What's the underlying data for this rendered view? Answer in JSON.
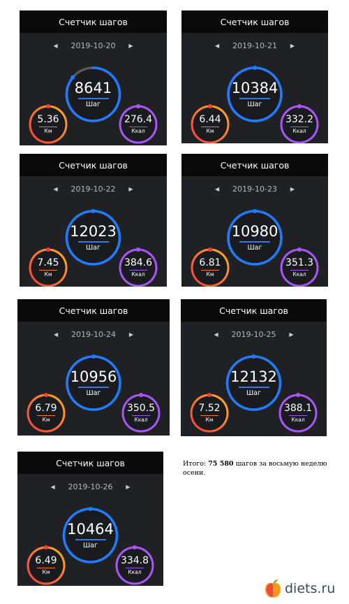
{
  "panels": [
    {
      "title": "Счетчик шагов",
      "date": "2019-10-20",
      "steps": "8641",
      "steps_unit": "Шаг",
      "km": "5.36",
      "km_unit": "Км",
      "kcal": "276.4",
      "kcal_unit": "Ккал",
      "progress": 0.86
    },
    {
      "title": "Счетчик шагов",
      "date": "2019-10-21",
      "steps": "10384",
      "steps_unit": "Шаг",
      "km": "6.44",
      "km_unit": "Км",
      "kcal": "332.2",
      "kcal_unit": "Ккал",
      "progress": 1.0
    },
    {
      "title": "Счетчик шагов",
      "date": "2019-10-22",
      "steps": "12023",
      "steps_unit": "Шаг",
      "km": "7.45",
      "km_unit": "Км",
      "kcal": "384.6",
      "kcal_unit": "Ккал",
      "progress": 1.0
    },
    {
      "title": "Счетчик шагов",
      "date": "2019-10-23",
      "steps": "10980",
      "steps_unit": "Шаг",
      "km": "6.81",
      "km_unit": "Км",
      "kcal": "351.3",
      "kcal_unit": "Ккал",
      "progress": 1.0
    },
    {
      "title": "Счетчик шагов",
      "date": "2019-10-24",
      "steps": "10956",
      "steps_unit": "Шаг",
      "km": "6.79",
      "km_unit": "Км",
      "kcal": "350.5",
      "kcal_unit": "Ккал",
      "progress": 1.0
    },
    {
      "title": "Счетчик шагов",
      "date": "2019-10-25",
      "steps": "12132",
      "steps_unit": "Шаг",
      "km": "7.52",
      "km_unit": "Км",
      "kcal": "388.1",
      "kcal_unit": "Ккал",
      "progress": 1.0
    },
    {
      "title": "Счетчик шагов",
      "date": "2019-10-26",
      "steps": "10464",
      "steps_unit": "Шаг",
      "km": "6.49",
      "km_unit": "Км",
      "kcal": "334.8",
      "kcal_unit": "Ккал",
      "progress": 1.0
    }
  ],
  "summary": {
    "prefix": "Итого: ",
    "total": "75 580",
    "suffix": " шагов за восьмую неделю осени."
  },
  "brand": {
    "text": "diets.ru"
  },
  "colors": {
    "steps_ring": "#1f7bff",
    "km_ring_start": "#ff3b3b",
    "km_ring_end": "#ffb020",
    "kcal_ring": "#a855f7",
    "panel_bg": "#202124",
    "header_bg": "#0a0a0a"
  }
}
